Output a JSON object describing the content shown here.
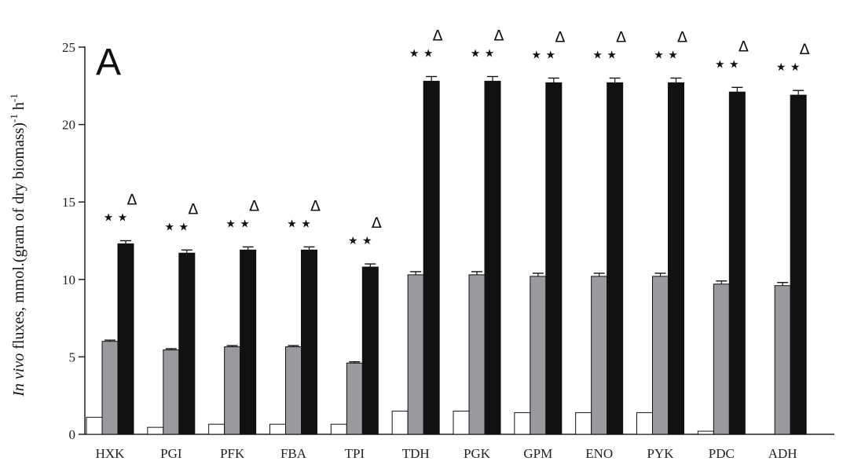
{
  "chart_data": {
    "type": "bar",
    "panel_label": "A",
    "ylabel": {
      "italic": "In vivo",
      "rest": " fluxes, mmol.(gram of dry biomass)",
      "sup1": "-1",
      "unit": " h",
      "sup2": "-1"
    },
    "ylim": [
      0,
      25
    ],
    "yticks": [
      "0",
      "5",
      "10",
      "15",
      "20",
      "25"
    ],
    "categories": [
      "HXK",
      "PGI",
      "PFK",
      "FBA",
      "TPI",
      "TDH",
      "PGK",
      "GPM",
      "ENO",
      "PYK",
      "PDC",
      "ADH"
    ],
    "series": [
      {
        "color": "#ffffff",
        "values": [
          1.1,
          0.45,
          0.65,
          0.65,
          0.65,
          1.5,
          1.5,
          1.4,
          1.4,
          1.4,
          0.2,
          0.0
        ],
        "errors": [
          0,
          0,
          0,
          0,
          0,
          0,
          0,
          0,
          0,
          0,
          0,
          0
        ]
      },
      {
        "color": "#9a9a9e",
        "values": [
          6.0,
          5.45,
          5.65,
          5.65,
          4.6,
          10.3,
          10.3,
          10.2,
          10.2,
          10.2,
          9.7,
          9.6
        ],
        "errors": [
          0.08,
          0.08,
          0.08,
          0.08,
          0.08,
          0.2,
          0.2,
          0.2,
          0.2,
          0.2,
          0.2,
          0.2
        ]
      },
      {
        "color": "#111111",
        "values": [
          12.3,
          11.7,
          11.9,
          11.9,
          10.8,
          22.8,
          22.8,
          22.7,
          22.7,
          22.7,
          22.1,
          21.9
        ],
        "errors": [
          0.2,
          0.2,
          0.2,
          0.2,
          0.2,
          0.3,
          0.3,
          0.3,
          0.3,
          0.3,
          0.3,
          0.3
        ]
      }
    ],
    "significance": {
      "star": "★",
      "delta": "Δ"
    }
  }
}
